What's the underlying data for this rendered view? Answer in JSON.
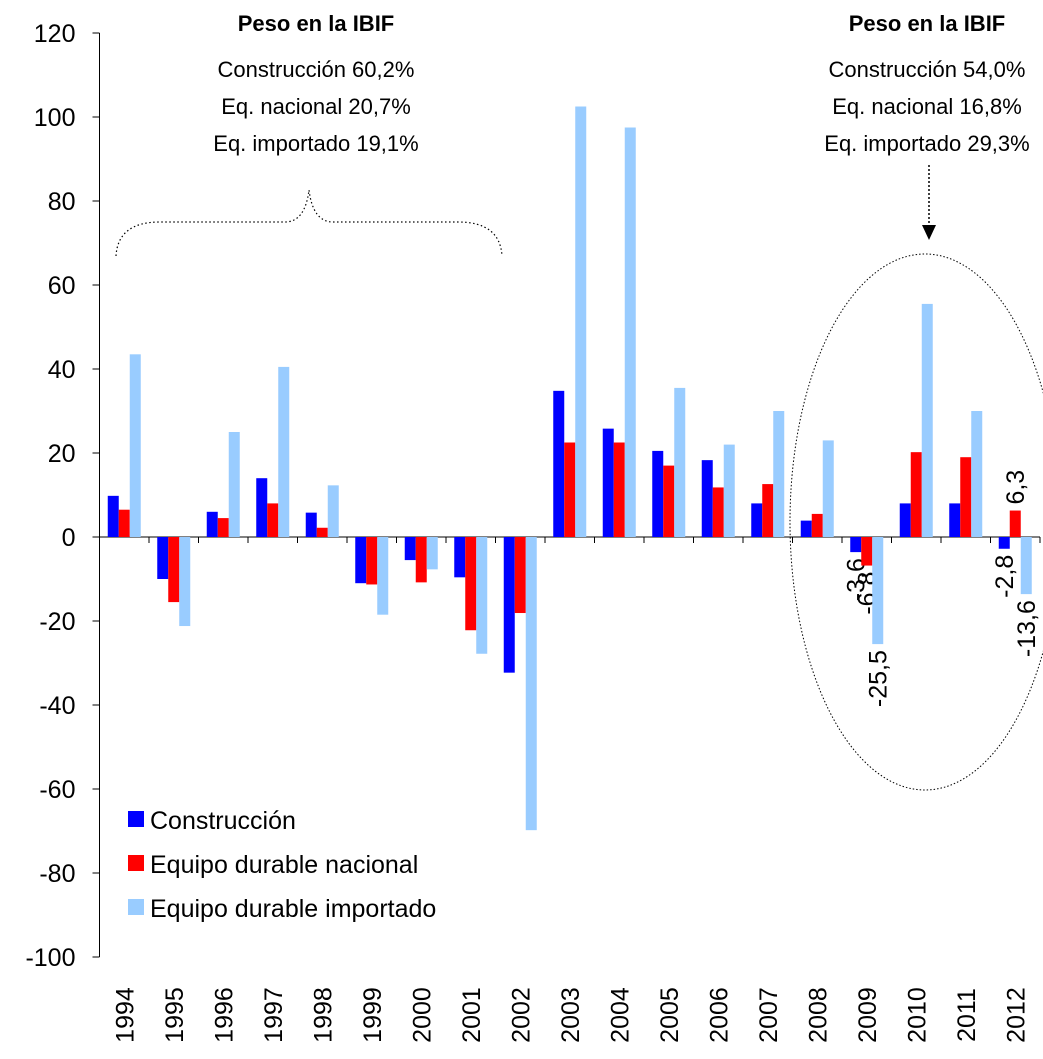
{
  "chart_data": {
    "type": "bar",
    "categories": [
      "1994",
      "1995",
      "1996",
      "1997",
      "1998",
      "1999",
      "2000",
      "2001",
      "2002",
      "2003",
      "2004",
      "2005",
      "2006",
      "2007",
      "2008",
      "2009",
      "2010",
      "2011",
      "2012"
    ],
    "series": [
      {
        "name": "Construcción",
        "color": "#0000ff",
        "values": [
          9.8,
          -10,
          6,
          14,
          5.8,
          -11,
          -5.5,
          -9.6,
          -32.3,
          34.8,
          25.8,
          20.5,
          18.3,
          8,
          3.9,
          -3.6,
          8,
          8,
          -2.8
        ],
        "value_labels": [
          null,
          null,
          null,
          null,
          null,
          null,
          null,
          null,
          null,
          null,
          null,
          null,
          null,
          null,
          null,
          "-3,6",
          null,
          null,
          "-2,8"
        ]
      },
      {
        "name": "Equipo durable nacional",
        "color": "#ff0000",
        "values": [
          6.5,
          -15.5,
          4.5,
          8,
          2.2,
          -11.3,
          -10.8,
          -22.2,
          -18.1,
          22.5,
          22.5,
          17,
          11.8,
          12.6,
          5.5,
          -6.8,
          20.2,
          19,
          6.3
        ],
        "value_labels": [
          null,
          null,
          null,
          null,
          null,
          null,
          null,
          null,
          null,
          null,
          null,
          null,
          null,
          null,
          null,
          "-6,8",
          null,
          null,
          "6,3"
        ]
      },
      {
        "name": "Equipo durable importado",
        "color": "#99ccff",
        "values": [
          43.5,
          -21.2,
          25,
          40.5,
          12.3,
          -18.5,
          -7.7,
          -27.8,
          -69.8,
          102.5,
          97.5,
          35.5,
          22,
          30,
          23,
          -25.5,
          55.5,
          30,
          -13.6
        ],
        "value_labels": [
          null,
          null,
          null,
          null,
          null,
          null,
          null,
          null,
          null,
          null,
          null,
          null,
          null,
          null,
          null,
          "-25,5",
          null,
          null,
          "-13,6"
        ]
      }
    ],
    "ylim": [
      -100,
      120
    ],
    "yticks": [
      -100,
      -80,
      -60,
      -40,
      -20,
      0,
      20,
      40,
      60,
      80,
      100,
      120
    ],
    "annotations": [
      {
        "title": "Peso en la IBIF",
        "lines": [
          "Construcción 60,2%",
          "Eq. nacional 20,7%",
          "Eq. importado 19,1%"
        ]
      },
      {
        "title": "Peso en la IBIF",
        "lines": [
          "Construcción 54,0%",
          "Eq. nacional 16,8%",
          "Eq. importado 29,3%"
        ]
      }
    ]
  }
}
